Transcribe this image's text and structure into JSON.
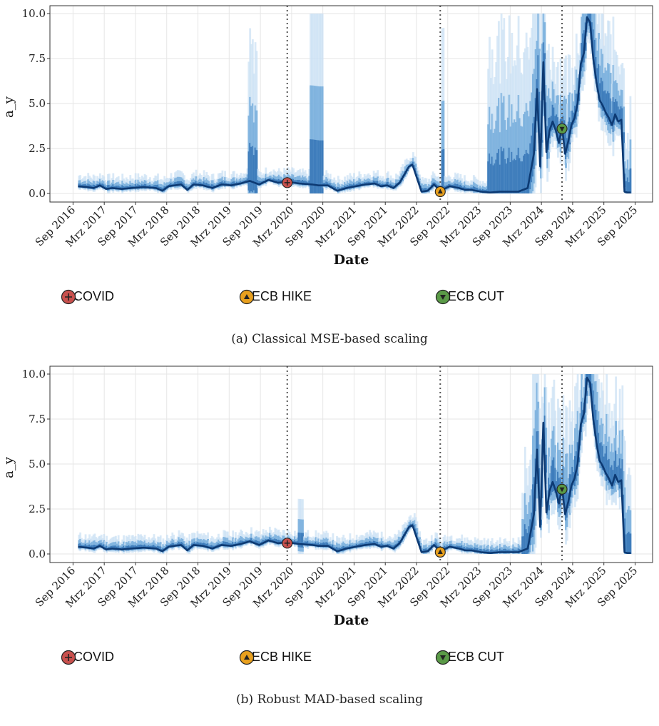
{
  "chart_data": [
    {
      "type": "line",
      "caption": "(a) Classical MSE-based scaling",
      "ylabel": "a_y",
      "xlabel": "Date",
      "ylim": [
        0,
        10
      ],
      "y_ticks": [
        "0.0",
        "2.5",
        "5.0",
        "7.5",
        "10.0"
      ],
      "x_ticks": [
        "Sep 2016",
        "Mrz 2017",
        "Sep 2017",
        "Mrz 2018",
        "Sep 2018",
        "Mrz 2019",
        "Sep 2019",
        "Mrz 2020",
        "Sep 2020",
        "Mrz 2021",
        "Sep 2021",
        "Mrz 2022",
        "Sep 2022",
        "Mrz 2023",
        "Sep 2023",
        "Mrz 2024",
        "Sep 2024",
        "Mrz 2025",
        "Sep 2025"
      ],
      "grid": true,
      "series": [
        {
          "x": [
            2016.75,
            2016.9,
            2017.0,
            2017.1,
            2017.2,
            2017.3,
            2017.45,
            2017.6,
            2017.8,
            2018.0,
            2018.1,
            2018.2,
            2018.4,
            2018.5,
            2018.6,
            2018.75,
            2018.9,
            2019.05,
            2019.2,
            2019.35,
            2019.5,
            2019.65,
            2019.8,
            2019.95,
            2020.1,
            2020.3,
            2020.5,
            2020.6,
            2020.75,
            2020.9,
            2021.05,
            2021.2,
            2021.35,
            2021.5,
            2021.6,
            2021.7,
            2021.8,
            2021.9,
            2022.0,
            2022.05,
            2022.1,
            2022.12,
            2022.25,
            2022.35,
            2022.45,
            2022.55,
            2022.7,
            2022.85,
            2022.95,
            2023.05,
            2023.2,
            2023.35,
            2023.5,
            2023.65,
            2023.8,
            2023.95,
            2024.05,
            2024.1,
            2024.15,
            2024.2,
            2024.25,
            2024.3,
            2024.35,
            2024.4,
            2024.45,
            2024.5,
            2024.55,
            2024.6,
            2024.65,
            2024.7,
            2024.75,
            2024.8,
            2024.85,
            2024.9,
            2024.95,
            2025.0,
            2025.05,
            2025.1,
            2025.15,
            2025.2,
            2025.25,
            2025.3,
            2025.35,
            2025.4,
            2025.45,
            2025.5,
            2025.55,
            2025.6
          ],
          "values": [
            0.4,
            0.35,
            0.3,
            0.45,
            0.25,
            0.3,
            0.25,
            0.3,
            0.35,
            0.3,
            0.15,
            0.4,
            0.5,
            0.2,
            0.5,
            0.45,
            0.3,
            0.5,
            0.45,
            0.55,
            0.7,
            0.5,
            0.75,
            0.6,
            0.65,
            0.55,
            0.5,
            0.45,
            0.45,
            0.15,
            0.3,
            0.4,
            0.5,
            0.55,
            0.4,
            0.45,
            0.3,
            0.6,
            1.2,
            1.5,
            1.6,
            1.45,
            0.1,
            0.15,
            0.5,
            0.15,
            0.4,
            0.3,
            0.2,
            0.2,
            0.1,
            0.05,
            0.1,
            0.1,
            0.1,
            0.3,
            2.2,
            5.8,
            1.5,
            7.3,
            2.3,
            3.5,
            4.0,
            3.5,
            2.8,
            3.7,
            2.2,
            2.9,
            3.8,
            4.2,
            5.0,
            7.2,
            7.8,
            9.8,
            9.5,
            7.5,
            6.2,
            5.2,
            4.9,
            4.5,
            4.2,
            3.8,
            4.4,
            4.0,
            4.1,
            0.1,
            0.05,
            0.05
          ]
        }
      ],
      "events": [
        {
          "name": "COVID",
          "x": 2020.1,
          "y": 0.6,
          "color": "#c8504d",
          "symbol": "+"
        },
        {
          "name": "ECB HIKE",
          "x": 2022.55,
          "y": 0.1,
          "color": "#e8a01e",
          "symbol": "▲"
        },
        {
          "name": "ECB CUT",
          "x": 2024.5,
          "y": 3.6,
          "color": "#5a9a47",
          "symbol": "▼"
        }
      ]
    },
    {
      "type": "line",
      "caption": "(b) Robust MAD-based scaling",
      "ylabel": "a_y",
      "xlabel": "Date",
      "ylim": [
        0,
        10
      ],
      "y_ticks": [
        "0.0",
        "2.5",
        "5.0",
        "7.5",
        "10.0"
      ],
      "x_ticks": [
        "Sep 2016",
        "Mrz 2017",
        "Sep 2017",
        "Mrz 2018",
        "Sep 2018",
        "Mrz 2019",
        "Sep 2019",
        "Mrz 2020",
        "Sep 2020",
        "Mrz 2021",
        "Sep 2021",
        "Mrz 2022",
        "Sep 2022",
        "Mrz 2023",
        "Sep 2023",
        "Mrz 2024",
        "Sep 2024",
        "Mrz 2025",
        "Sep 2025"
      ],
      "grid": true,
      "series": [
        {
          "x": [
            2016.75,
            2016.9,
            2017.0,
            2017.1,
            2017.2,
            2017.3,
            2017.45,
            2017.6,
            2017.8,
            2018.0,
            2018.1,
            2018.2,
            2018.4,
            2018.5,
            2018.6,
            2018.75,
            2018.9,
            2019.05,
            2019.2,
            2019.35,
            2019.5,
            2019.65,
            2019.8,
            2019.95,
            2020.1,
            2020.3,
            2020.5,
            2020.6,
            2020.75,
            2020.9,
            2021.05,
            2021.2,
            2021.35,
            2021.5,
            2021.6,
            2021.7,
            2021.8,
            2021.9,
            2022.0,
            2022.05,
            2022.1,
            2022.12,
            2022.25,
            2022.35,
            2022.45,
            2022.55,
            2022.7,
            2022.85,
            2022.95,
            2023.05,
            2023.2,
            2023.35,
            2023.5,
            2023.65,
            2023.8,
            2023.95,
            2024.05,
            2024.1,
            2024.15,
            2024.2,
            2024.25,
            2024.3,
            2024.35,
            2024.4,
            2024.45,
            2024.5,
            2024.55,
            2024.6,
            2024.65,
            2024.7,
            2024.75,
            2024.8,
            2024.85,
            2024.9,
            2024.95,
            2025.0,
            2025.05,
            2025.1,
            2025.15,
            2025.2,
            2025.25,
            2025.3,
            2025.35,
            2025.4,
            2025.45,
            2025.5,
            2025.55,
            2025.6
          ],
          "values": [
            0.4,
            0.35,
            0.3,
            0.45,
            0.25,
            0.3,
            0.25,
            0.3,
            0.35,
            0.3,
            0.15,
            0.4,
            0.5,
            0.2,
            0.5,
            0.45,
            0.3,
            0.5,
            0.45,
            0.55,
            0.7,
            0.5,
            0.75,
            0.6,
            0.65,
            0.55,
            0.5,
            0.45,
            0.45,
            0.15,
            0.3,
            0.4,
            0.5,
            0.55,
            0.4,
            0.45,
            0.3,
            0.6,
            1.2,
            1.5,
            1.6,
            1.45,
            0.1,
            0.15,
            0.5,
            0.15,
            0.4,
            0.3,
            0.2,
            0.2,
            0.1,
            0.05,
            0.1,
            0.1,
            0.1,
            0.3,
            2.2,
            5.8,
            1.5,
            7.3,
            2.3,
            3.5,
            4.0,
            3.5,
            2.8,
            3.7,
            2.2,
            2.9,
            3.8,
            4.2,
            5.0,
            7.2,
            7.8,
            9.8,
            9.5,
            7.5,
            6.2,
            5.2,
            4.9,
            4.5,
            4.2,
            3.8,
            4.4,
            4.0,
            4.1,
            0.1,
            0.05,
            0.05
          ]
        }
      ],
      "events": [
        {
          "name": "COVID",
          "x": 2020.1,
          "y": 0.6,
          "color": "#c8504d",
          "symbol": "+"
        },
        {
          "name": "ECB HIKE",
          "x": 2022.55,
          "y": 0.1,
          "color": "#e8a01e",
          "symbol": "▲"
        },
        {
          "name": "ECB CUT",
          "x": 2024.5,
          "y": 3.6,
          "color": "#5a9a47",
          "symbol": "▼"
        }
      ]
    }
  ],
  "legend": [
    {
      "label": "COVID",
      "color": "#c8504d",
      "symbol": "+"
    },
    {
      "label": "ECB HIKE",
      "color": "#e8a01e",
      "symbol": "▲"
    },
    {
      "label": "ECB CUT",
      "color": "#5a9a47",
      "symbol": "▼"
    }
  ],
  "colors": {
    "line": "#0d3a73",
    "band_inner": "#2e6fb3",
    "band_mid": "#6aa5d8",
    "band_outer": "#c9e0f3",
    "grid": "#e6e6e6",
    "vline": "#555555"
  }
}
